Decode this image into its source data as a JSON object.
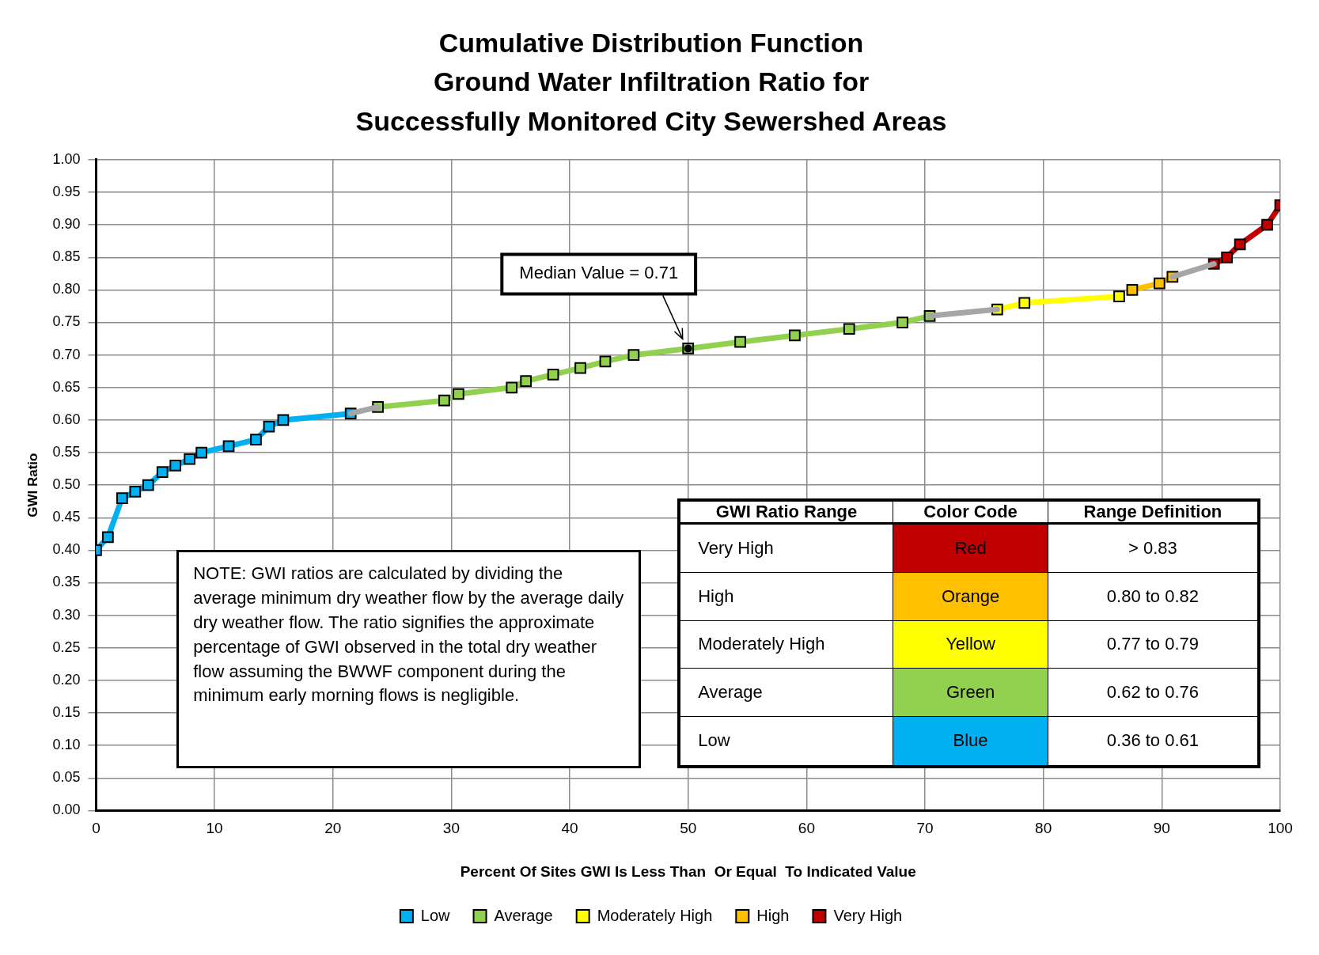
{
  "chart_data": [
    {
      "type": "line",
      "title": "Cumulative Distribution Function\nGround Water Infiltration Ratio for\nSuccessfully Monitored City Sewershed Areas",
      "xlabel": "Percent Of Sites GWI Is Less Than  Or Equal  To Indicated Value",
      "ylabel": "GWI Ratio",
      "xlim": [
        0,
        100
      ],
      "xticks": [
        0,
        10,
        20,
        30,
        40,
        50,
        60,
        70,
        80,
        90,
        100
      ],
      "ylim": [
        0,
        1
      ],
      "yticks": [
        {
          "value": 0,
          "label": "0.00"
        },
        {
          "value": 0.05,
          "label": "0.05"
        },
        {
          "value": 0.1,
          "label": "0.10"
        },
        {
          "value": 0.15,
          "label": "0.15"
        },
        {
          "value": 0.2,
          "label": "0.20"
        },
        {
          "value": 0.25,
          "label": "0.25"
        },
        {
          "value": 0.3,
          "label": "0.30"
        },
        {
          "value": 0.35,
          "label": "0.35"
        },
        {
          "value": 0.4,
          "label": "0.40"
        },
        {
          "value": 0.45,
          "label": "0.45"
        },
        {
          "value": 0.5,
          "label": "0.50"
        },
        {
          "value": 0.55,
          "label": "0.55"
        },
        {
          "value": 0.6,
          "label": "0.60"
        },
        {
          "value": 0.65,
          "label": "0.65"
        },
        {
          "value": 0.7,
          "label": "0.70"
        },
        {
          "value": 0.75,
          "label": "0.75"
        },
        {
          "value": 0.8,
          "label": "0.80"
        },
        {
          "value": 0.85,
          "label": "0.85"
        },
        {
          "value": 0.9,
          "label": "0.90"
        },
        {
          "value": 0.95,
          "label": "0.95"
        },
        {
          "value": 1,
          "label": "1.00"
        }
      ],
      "grid": true,
      "legend": "bottom",
      "marker": "square",
      "line_style": "solid",
      "series": [
        {
          "color": "#a6a6a6",
          "marker": "none",
          "x": [
            21.5,
            23.8
          ],
          "values": [
            0.61,
            0.62
          ]
        },
        {
          "color": "#a6a6a6",
          "marker": "none",
          "x": [
            70.4,
            76.1
          ],
          "values": [
            0.76,
            0.77
          ]
        },
        {
          "color": "#a6a6a6",
          "marker": "none",
          "x": [
            90.9,
            94.4
          ],
          "values": [
            0.82,
            0.84
          ]
        },
        {
          "name": "Low",
          "color": "#00b0f0",
          "x": [
            0,
            1,
            2.2,
            3.3,
            4.4,
            5.6,
            6.7,
            7.9,
            8.9,
            11.2,
            13.5,
            14.6,
            15.8,
            21.5
          ],
          "values": [
            0.4,
            0.42,
            0.48,
            0.49,
            0.5,
            0.52,
            0.53,
            0.54,
            0.55,
            0.56,
            0.57,
            0.59,
            0.6,
            0.61
          ]
        },
        {
          "name": "Average",
          "color": "#92d050",
          "x": [
            23.8,
            29.4,
            30.6,
            35.1,
            36.3,
            38.6,
            40.9,
            43.0,
            45.4,
            50.0,
            54.4,
            59.0,
            63.6,
            68.1,
            70.4
          ],
          "values": [
            0.62,
            0.63,
            0.64,
            0.65,
            0.66,
            0.67,
            0.68,
            0.69,
            0.7,
            0.71,
            0.72,
            0.73,
            0.74,
            0.75,
            0.76
          ]
        },
        {
          "name": "Moderately High",
          "color": "#ffff00",
          "x": [
            76.1,
            78.4,
            86.4
          ],
          "values": [
            0.77,
            0.78,
            0.79
          ]
        },
        {
          "name": "High",
          "color": "#ffc000",
          "x": [
            87.5,
            89.8,
            90.9
          ],
          "values": [
            0.8,
            0.81,
            0.82
          ]
        },
        {
          "name": "Very High",
          "color": "#c00000",
          "x": [
            94.4,
            95.5,
            96.6,
            98.9,
            100
          ],
          "values": [
            0.84,
            0.85,
            0.87,
            0.9,
            0.93
          ]
        }
      ],
      "annotations": [
        "Median Value = 0.71",
        "NOTE: GWI ratios are calculated by  dividing the average minimum dry weather flow by the average daily dry weather flow.  The ratio signifies the approximate percentage of GWI observed in the total dry weather flow assuming the BWWF component during the minimum early morning flows is negligible."
      ]
    },
    {
      "type": "other",
      "categories": [
        "GWI Ratio Range",
        "Color Code",
        "Range Definition"
      ],
      "cell_labels": [
        [
          "Very High",
          "Red",
          "> 0.83"
        ],
        [
          "High",
          "Orange",
          "0.80 to 0.82"
        ],
        [
          "Moderately High",
          "Yellow",
          "0.77 to 0.79"
        ],
        [
          "Average",
          "Green",
          "0.62 to 0.76"
        ],
        [
          "Low",
          "Blue",
          "0.36 to 0.61"
        ]
      ],
      "colors": [
        "#c00000",
        "#ffc000",
        "#ffff00",
        "#92d050",
        "#00b0f0"
      ]
    }
  ]
}
